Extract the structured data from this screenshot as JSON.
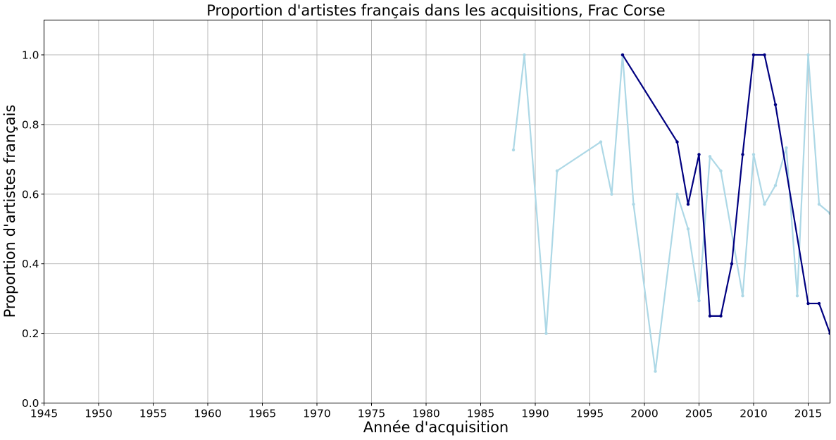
{
  "chart_data": {
    "type": "line",
    "title": "Proportion d'artistes français dans les acquisitions, Frac Corse",
    "xlabel": "Année d'acquisition",
    "ylabel": "Proportion d'artistes français",
    "xlim": [
      1945,
      2017
    ],
    "ylim": [
      0.0,
      1.1
    ],
    "xticks": [
      1945,
      1950,
      1955,
      1960,
      1965,
      1970,
      1975,
      1980,
      1985,
      1990,
      1995,
      2000,
      2005,
      2010,
      2015
    ],
    "xtick_labels": [
      "1945",
      "1950",
      "1955",
      "1960",
      "1965",
      "1970",
      "1975",
      "1980",
      "1985",
      "1990",
      "1995",
      "2000",
      "2005",
      "2010",
      "2015"
    ],
    "yticks": [
      0.0,
      0.2,
      0.4,
      0.6,
      0.8,
      1.0
    ],
    "ytick_labels": [
      "0.0",
      "0.2",
      "0.4",
      "0.6",
      "0.8",
      "1.0"
    ],
    "grid": true,
    "series": [
      {
        "color": "#add8e6",
        "points": [
          [
            1988,
            0.727
          ],
          [
            1989,
            1.0
          ],
          [
            1991,
            0.2
          ],
          [
            1992,
            0.667
          ],
          [
            1996,
            0.75
          ],
          [
            1997,
            0.6
          ],
          [
            1998,
            1.0
          ],
          [
            1999,
            0.571
          ],
          [
            2001,
            0.091
          ],
          [
            2003,
            0.6
          ],
          [
            2004,
            0.5
          ],
          [
            2005,
            0.294
          ],
          [
            2006,
            0.708
          ],
          [
            2007,
            0.667
          ],
          [
            2009,
            0.308
          ],
          [
            2010,
            0.714
          ],
          [
            2011,
            0.571
          ],
          [
            2012,
            0.625
          ],
          [
            2013,
            0.733
          ],
          [
            2014,
            0.308
          ],
          [
            2015,
            1.0
          ],
          [
            2016,
            0.571
          ],
          [
            2017,
            0.545
          ]
        ]
      },
      {
        "color": "#000080",
        "points": [
          [
            1998,
            1.0
          ],
          [
            2003,
            0.75
          ],
          [
            2004,
            0.571
          ],
          [
            2005,
            0.714
          ],
          [
            2006,
            0.25
          ],
          [
            2007,
            0.25
          ],
          [
            2008,
            0.4
          ],
          [
            2009,
            0.714
          ],
          [
            2010,
            1.0
          ],
          [
            2011,
            1.0
          ],
          [
            2012,
            0.857
          ],
          [
            2015,
            0.286
          ],
          [
            2016,
            0.286
          ],
          [
            2017,
            0.2
          ]
        ]
      }
    ]
  }
}
